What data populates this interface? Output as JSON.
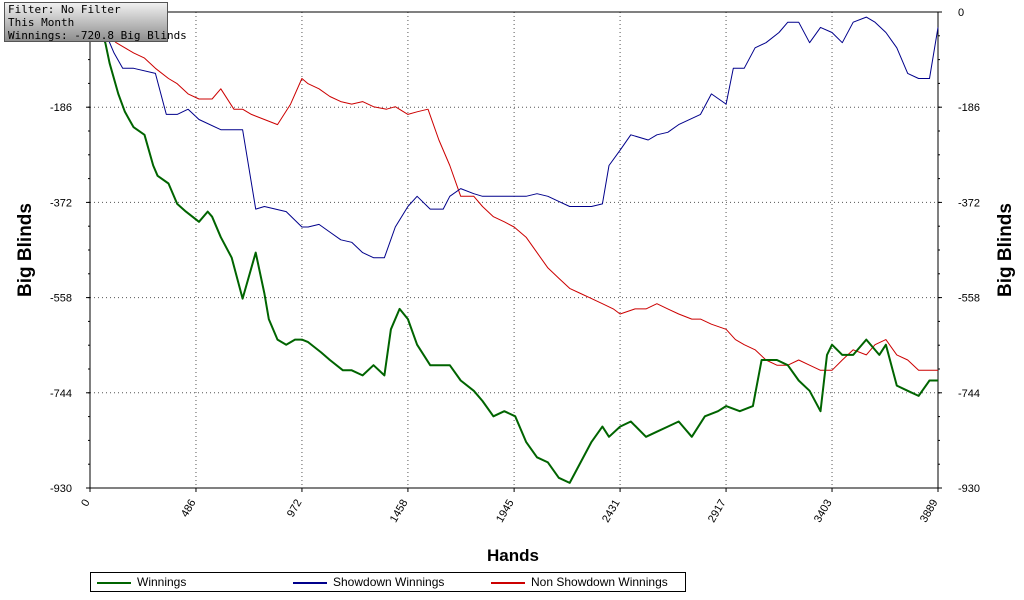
{
  "filter_box": {
    "filter_line": "Filter: No Filter",
    "period_line": "This Month",
    "winnings_line": "Winnings: -720.8 Big Blinds"
  },
  "chart_data": {
    "type": "line",
    "title": "",
    "xlabel": "Hands",
    "ylabel": "Big Blinds",
    "xlim": [
      0,
      3889
    ],
    "ylim": [
      -930,
      0
    ],
    "xticks": [
      "0",
      "486",
      "972",
      "1458",
      "1945",
      "2431",
      "2917",
      "3403",
      "3889"
    ],
    "yticks_left": [
      "-186",
      "-372",
      "-558",
      "-744",
      "-930"
    ],
    "yticks_right": [
      "0",
      "-186",
      "-372",
      "-558",
      "-744",
      "-930"
    ],
    "grid": true,
    "legend_position": "bottom",
    "series": [
      {
        "name": "Winnings",
        "color": "#006400",
        "x": [
          0,
          70,
          90,
          130,
          160,
          180,
          200,
          250,
          290,
          310,
          360,
          400,
          440,
          500,
          540,
          560,
          600,
          650,
          700,
          760,
          800,
          820,
          860,
          900,
          940,
          972,
          1000,
          1060,
          1100,
          1160,
          1200,
          1250,
          1300,
          1350,
          1380,
          1420,
          1458,
          1500,
          1560,
          1600,
          1650,
          1700,
          1760,
          1800,
          1850,
          1900,
          1950,
          2000,
          2050,
          2100,
          2150,
          2200,
          2250,
          2300,
          2350,
          2380,
          2431,
          2480,
          2550,
          2600,
          2650,
          2700,
          2760,
          2820,
          2880,
          2917,
          2980,
          3040,
          3080,
          3150,
          3200,
          3250,
          3300,
          3350,
          3380,
          3403,
          3450,
          3500,
          3560,
          3620,
          3650,
          3700,
          3750,
          3800,
          3850,
          3889
        ],
        "y": [
          0,
          -60,
          -100,
          -160,
          -195,
          -210,
          -225,
          -240,
          -300,
          -320,
          -335,
          -375,
          -390,
          -410,
          -390,
          -400,
          -440,
          -480,
          -560,
          -470,
          -550,
          -600,
          -640,
          -650,
          -640,
          -640,
          -645,
          -665,
          -680,
          -700,
          -700,
          -710,
          -690,
          -710,
          -620,
          -580,
          -600,
          -650,
          -690,
          -690,
          -690,
          -720,
          -740,
          -760,
          -790,
          -780,
          -790,
          -840,
          -870,
          -880,
          -910,
          -920,
          -880,
          -840,
          -810,
          -830,
          -810,
          -800,
          -830,
          -820,
          -810,
          -800,
          -830,
          -790,
          -780,
          -770,
          -780,
          -770,
          -680,
          -680,
          -690,
          -720,
          -740,
          -780,
          -670,
          -650,
          -670,
          -670,
          -640,
          -670,
          -650,
          -730,
          -740,
          -750,
          -720,
          -720
        ]
      },
      {
        "name": "Showdown Winnings",
        "color": "#00008b",
        "x": [
          0,
          70,
          110,
          150,
          200,
          300,
          350,
          400,
          450,
          500,
          600,
          700,
          760,
          800,
          900,
          972,
          1000,
          1050,
          1100,
          1150,
          1200,
          1250,
          1300,
          1350,
          1400,
          1458,
          1500,
          1560,
          1620,
          1650,
          1700,
          1760,
          1800,
          1850,
          1900,
          1945,
          2000,
          2050,
          2100,
          2150,
          2200,
          2300,
          2350,
          2380,
          2431,
          2480,
          2560,
          2600,
          2650,
          2700,
          2800,
          2850,
          2917,
          2950,
          3000,
          3050,
          3100,
          3160,
          3200,
          3250,
          3300,
          3350,
          3403,
          3450,
          3500,
          3560,
          3600,
          3650,
          3700,
          3750,
          3800,
          3850,
          3889
        ],
        "y": [
          0,
          -40,
          -80,
          -110,
          -110,
          -120,
          -200,
          -200,
          -190,
          -210,
          -230,
          -230,
          -385,
          -380,
          -390,
          -420,
          -420,
          -415,
          -430,
          -445,
          -450,
          -470,
          -480,
          -480,
          -420,
          -380,
          -360,
          -385,
          -385,
          -360,
          -345,
          -355,
          -360,
          -360,
          -360,
          -360,
          -360,
          -355,
          -360,
          -370,
          -380,
          -380,
          -375,
          -300,
          -270,
          -240,
          -250,
          -240,
          -235,
          -220,
          -200,
          -160,
          -180,
          -110,
          -110,
          -70,
          -60,
          -40,
          -20,
          -20,
          -60,
          -30,
          -40,
          -60,
          -20,
          -10,
          -20,
          -40,
          -70,
          -120,
          -130,
          -130,
          -30
        ]
      },
      {
        "name": "Non Showdown Winnings",
        "color": "#cc0000",
        "x": [
          0,
          70,
          120,
          160,
          200,
          250,
          300,
          360,
          400,
          450,
          500,
          560,
          600,
          660,
          700,
          740,
          800,
          860,
          920,
          972,
          1000,
          1050,
          1100,
          1150,
          1200,
          1250,
          1300,
          1360,
          1400,
          1458,
          1500,
          1550,
          1600,
          1650,
          1700,
          1760,
          1800,
          1850,
          1900,
          1945,
          2000,
          2050,
          2100,
          2150,
          2200,
          2250,
          2300,
          2350,
          2400,
          2431,
          2500,
          2550,
          2600,
          2650,
          2700,
          2760,
          2800,
          2850,
          2917,
          2960,
          3000,
          3050,
          3100,
          3150,
          3200,
          3250,
          3300,
          3350,
          3403,
          3450,
          3500,
          3560,
          3600,
          3650,
          3700,
          3750,
          3800,
          3850,
          3889
        ],
        "y": [
          0,
          -40,
          -60,
          -70,
          -80,
          -90,
          -110,
          -130,
          -140,
          -160,
          -170,
          -170,
          -150,
          -190,
          -190,
          -200,
          -210,
          -220,
          -180,
          -130,
          -140,
          -150,
          -165,
          -175,
          -180,
          -175,
          -185,
          -190,
          -185,
          -200,
          -195,
          -190,
          -250,
          -300,
          -360,
          -360,
          -380,
          -400,
          -410,
          -420,
          -440,
          -470,
          -500,
          -520,
          -540,
          -550,
          -560,
          -570,
          -580,
          -590,
          -580,
          -580,
          -570,
          -580,
          -590,
          -600,
          -600,
          -610,
          -620,
          -640,
          -650,
          -660,
          -680,
          -690,
          -690,
          -680,
          -690,
          -700,
          -700,
          -680,
          -660,
          -670,
          -650,
          -640,
          -670,
          -680,
          -700,
          -700,
          -700
        ]
      }
    ]
  }
}
